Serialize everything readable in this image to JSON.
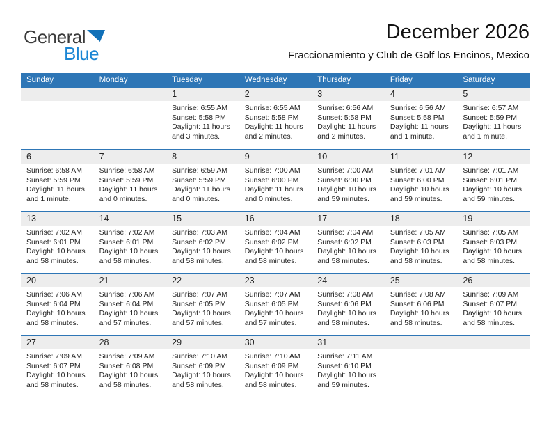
{
  "logo": {
    "line1": "General",
    "line2": "Blue"
  },
  "header": {
    "title": "December 2026",
    "subtitle": "Fraccionamiento y Club de Golf los Encinos, Mexico"
  },
  "colors": {
    "accent_blue": "#2e76b6",
    "band_gray": "#ededed",
    "logo_blue": "#1b86d4",
    "logo_triangle_blue": "#1070b8"
  },
  "calendar": {
    "weekdays": [
      "Sunday",
      "Monday",
      "Tuesday",
      "Wednesday",
      "Thursday",
      "Friday",
      "Saturday"
    ],
    "weeks": [
      [
        null,
        null,
        {
          "day": "1",
          "sunrise": "Sunrise: 6:55 AM",
          "sunset": "Sunset: 5:58 PM",
          "daylight1": "Daylight: 11 hours",
          "daylight2": "and 3 minutes."
        },
        {
          "day": "2",
          "sunrise": "Sunrise: 6:55 AM",
          "sunset": "Sunset: 5:58 PM",
          "daylight1": "Daylight: 11 hours",
          "daylight2": "and 2 minutes."
        },
        {
          "day": "3",
          "sunrise": "Sunrise: 6:56 AM",
          "sunset": "Sunset: 5:58 PM",
          "daylight1": "Daylight: 11 hours",
          "daylight2": "and 2 minutes."
        },
        {
          "day": "4",
          "sunrise": "Sunrise: 6:56 AM",
          "sunset": "Sunset: 5:58 PM",
          "daylight1": "Daylight: 11 hours",
          "daylight2": "and 1 minute."
        },
        {
          "day": "5",
          "sunrise": "Sunrise: 6:57 AM",
          "sunset": "Sunset: 5:59 PM",
          "daylight1": "Daylight: 11 hours",
          "daylight2": "and 1 minute."
        }
      ],
      [
        {
          "day": "6",
          "sunrise": "Sunrise: 6:58 AM",
          "sunset": "Sunset: 5:59 PM",
          "daylight1": "Daylight: 11 hours",
          "daylight2": "and 1 minute."
        },
        {
          "day": "7",
          "sunrise": "Sunrise: 6:58 AM",
          "sunset": "Sunset: 5:59 PM",
          "daylight1": "Daylight: 11 hours",
          "daylight2": "and 0 minutes."
        },
        {
          "day": "8",
          "sunrise": "Sunrise: 6:59 AM",
          "sunset": "Sunset: 5:59 PM",
          "daylight1": "Daylight: 11 hours",
          "daylight2": "and 0 minutes."
        },
        {
          "day": "9",
          "sunrise": "Sunrise: 7:00 AM",
          "sunset": "Sunset: 6:00 PM",
          "daylight1": "Daylight: 11 hours",
          "daylight2": "and 0 minutes."
        },
        {
          "day": "10",
          "sunrise": "Sunrise: 7:00 AM",
          "sunset": "Sunset: 6:00 PM",
          "daylight1": "Daylight: 10 hours",
          "daylight2": "and 59 minutes."
        },
        {
          "day": "11",
          "sunrise": "Sunrise: 7:01 AM",
          "sunset": "Sunset: 6:00 PM",
          "daylight1": "Daylight: 10 hours",
          "daylight2": "and 59 minutes."
        },
        {
          "day": "12",
          "sunrise": "Sunrise: 7:01 AM",
          "sunset": "Sunset: 6:01 PM",
          "daylight1": "Daylight: 10 hours",
          "daylight2": "and 59 minutes."
        }
      ],
      [
        {
          "day": "13",
          "sunrise": "Sunrise: 7:02 AM",
          "sunset": "Sunset: 6:01 PM",
          "daylight1": "Daylight: 10 hours",
          "daylight2": "and 58 minutes."
        },
        {
          "day": "14",
          "sunrise": "Sunrise: 7:02 AM",
          "sunset": "Sunset: 6:01 PM",
          "daylight1": "Daylight: 10 hours",
          "daylight2": "and 58 minutes."
        },
        {
          "day": "15",
          "sunrise": "Sunrise: 7:03 AM",
          "sunset": "Sunset: 6:02 PM",
          "daylight1": "Daylight: 10 hours",
          "daylight2": "and 58 minutes."
        },
        {
          "day": "16",
          "sunrise": "Sunrise: 7:04 AM",
          "sunset": "Sunset: 6:02 PM",
          "daylight1": "Daylight: 10 hours",
          "daylight2": "and 58 minutes."
        },
        {
          "day": "17",
          "sunrise": "Sunrise: 7:04 AM",
          "sunset": "Sunset: 6:02 PM",
          "daylight1": "Daylight: 10 hours",
          "daylight2": "and 58 minutes."
        },
        {
          "day": "18",
          "sunrise": "Sunrise: 7:05 AM",
          "sunset": "Sunset: 6:03 PM",
          "daylight1": "Daylight: 10 hours",
          "daylight2": "and 58 minutes."
        },
        {
          "day": "19",
          "sunrise": "Sunrise: 7:05 AM",
          "sunset": "Sunset: 6:03 PM",
          "daylight1": "Daylight: 10 hours",
          "daylight2": "and 58 minutes."
        }
      ],
      [
        {
          "day": "20",
          "sunrise": "Sunrise: 7:06 AM",
          "sunset": "Sunset: 6:04 PM",
          "daylight1": "Daylight: 10 hours",
          "daylight2": "and 58 minutes."
        },
        {
          "day": "21",
          "sunrise": "Sunrise: 7:06 AM",
          "sunset": "Sunset: 6:04 PM",
          "daylight1": "Daylight: 10 hours",
          "daylight2": "and 57 minutes."
        },
        {
          "day": "22",
          "sunrise": "Sunrise: 7:07 AM",
          "sunset": "Sunset: 6:05 PM",
          "daylight1": "Daylight: 10 hours",
          "daylight2": "and 57 minutes."
        },
        {
          "day": "23",
          "sunrise": "Sunrise: 7:07 AM",
          "sunset": "Sunset: 6:05 PM",
          "daylight1": "Daylight: 10 hours",
          "daylight2": "and 57 minutes."
        },
        {
          "day": "24",
          "sunrise": "Sunrise: 7:08 AM",
          "sunset": "Sunset: 6:06 PM",
          "daylight1": "Daylight: 10 hours",
          "daylight2": "and 58 minutes."
        },
        {
          "day": "25",
          "sunrise": "Sunrise: 7:08 AM",
          "sunset": "Sunset: 6:06 PM",
          "daylight1": "Daylight: 10 hours",
          "daylight2": "and 58 minutes."
        },
        {
          "day": "26",
          "sunrise": "Sunrise: 7:09 AM",
          "sunset": "Sunset: 6:07 PM",
          "daylight1": "Daylight: 10 hours",
          "daylight2": "and 58 minutes."
        }
      ],
      [
        {
          "day": "27",
          "sunrise": "Sunrise: 7:09 AM",
          "sunset": "Sunset: 6:07 PM",
          "daylight1": "Daylight: 10 hours",
          "daylight2": "and 58 minutes."
        },
        {
          "day": "28",
          "sunrise": "Sunrise: 7:09 AM",
          "sunset": "Sunset: 6:08 PM",
          "daylight1": "Daylight: 10 hours",
          "daylight2": "and 58 minutes."
        },
        {
          "day": "29",
          "sunrise": "Sunrise: 7:10 AM",
          "sunset": "Sunset: 6:09 PM",
          "daylight1": "Daylight: 10 hours",
          "daylight2": "and 58 minutes."
        },
        {
          "day": "30",
          "sunrise": "Sunrise: 7:10 AM",
          "sunset": "Sunset: 6:09 PM",
          "daylight1": "Daylight: 10 hours",
          "daylight2": "and 58 minutes."
        },
        {
          "day": "31",
          "sunrise": "Sunrise: 7:11 AM",
          "sunset": "Sunset: 6:10 PM",
          "daylight1": "Daylight: 10 hours",
          "daylight2": "and 59 minutes."
        },
        null,
        null
      ]
    ]
  }
}
